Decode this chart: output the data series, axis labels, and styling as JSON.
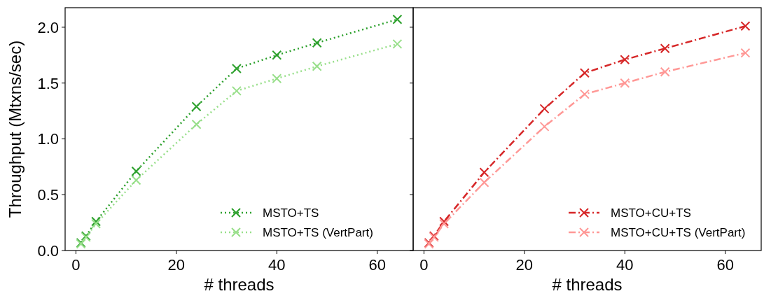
{
  "chart_data": [
    {
      "type": "line",
      "xlabel": "# threads",
      "ylabel": "Throughput (Mtxns/sec)",
      "x": [
        1,
        2,
        4,
        12,
        24,
        32,
        40,
        48,
        64
      ],
      "xlim": [
        -2.15,
        67.15
      ],
      "xticks": [
        0,
        20,
        40,
        60
      ],
      "ylim": [
        0,
        2.175
      ],
      "yticks": [
        {
          "value": 0,
          "label": "0.0"
        },
        {
          "value": 0.5,
          "label": "0.5"
        },
        {
          "value": 1,
          "label": "1.0"
        },
        {
          "value": 1.5,
          "label": "1.5"
        },
        {
          "value": 2,
          "label": "2.0"
        }
      ],
      "marker": "cross",
      "line_style": "dotted",
      "legend": "bottom right",
      "grid": false,
      "series": [
        {
          "name": "MSTO+TS",
          "color": "#2ca02c",
          "values": [
            0.07,
            0.13,
            0.26,
            0.71,
            1.29,
            1.63,
            1.75,
            1.86,
            2.07
          ]
        },
        {
          "name": "MSTO+TS (VertPart)",
          "color": "#98df8a",
          "values": [
            0.06,
            0.12,
            0.24,
            0.63,
            1.13,
            1.43,
            1.54,
            1.65,
            1.85
          ]
        }
      ]
    },
    {
      "type": "line",
      "xlabel": "# threads",
      "x": [
        1,
        2,
        4,
        12,
        24,
        32,
        40,
        48,
        64
      ],
      "xlim": [
        -2.15,
        67.15
      ],
      "xticks": [
        0,
        20,
        40,
        60
      ],
      "ylim": [
        0,
        2.175
      ],
      "yticks": [
        {
          "value": 0,
          "label": null
        },
        {
          "value": 0.5,
          "label": null
        },
        {
          "value": 1,
          "label": null
        },
        {
          "value": 1.5,
          "label": null
        },
        {
          "value": 2,
          "label": null
        }
      ],
      "tick_labels": "x",
      "marker": "cross",
      "line_style": "dashdot",
      "legend": "bottom right",
      "grid": false,
      "series": [
        {
          "name": "MSTO+CU+TS",
          "color": "#d62728",
          "values": [
            0.07,
            0.13,
            0.26,
            0.7,
            1.27,
            1.59,
            1.71,
            1.81,
            2.01
          ]
        },
        {
          "name": "MSTO+CU+TS (VertPart)",
          "color": "#ff9896",
          "values": [
            0.06,
            0.12,
            0.24,
            0.61,
            1.11,
            1.4,
            1.5,
            1.6,
            1.77
          ]
        }
      ]
    }
  ]
}
